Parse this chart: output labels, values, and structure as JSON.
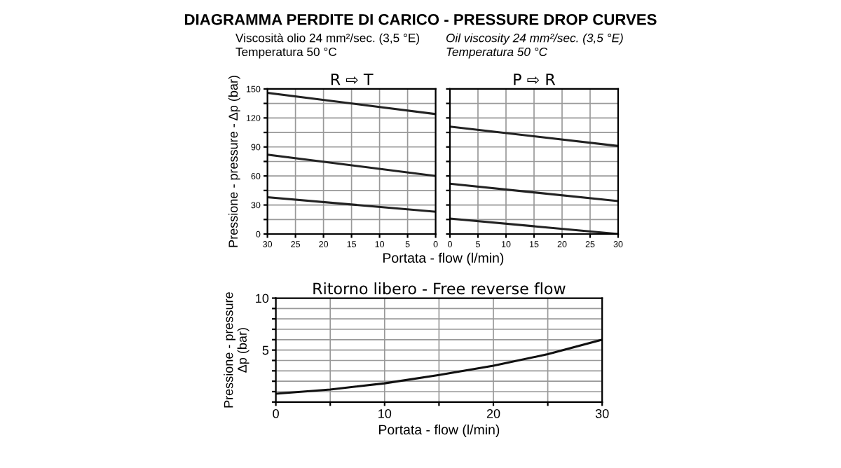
{
  "chart_data": [
    {
      "type": "line",
      "title": "R ⇨ T",
      "subtitle": "Viscosità olio 24 mm²/sec. (3,5 °E)\nTemperatura 50 °C",
      "annotations": [
        "DIAGRAMMA PERDITE DI CARICO - PRESSURE DROP CURVES"
      ],
      "xlabel": "Portata - flow (l/min)",
      "ylabel": "Pressione - pressure - Δp (bar)",
      "x": [
        30,
        0
      ],
      "series": [
        {
          "color": "#222222",
          "values": [
            146,
            124
          ]
        },
        {
          "color": "#222222",
          "values": [
            82,
            60
          ]
        },
        {
          "color": "#222222",
          "values": [
            38,
            23
          ]
        }
      ],
      "xlim": [
        30,
        0
      ],
      "xticks": [
        30,
        25,
        20,
        15,
        10,
        5,
        0
      ],
      "ylim": [
        0,
        150
      ],
      "yticks": [
        0,
        {
          "value": 15,
          "label": null
        },
        30,
        {
          "value": 45,
          "label": null
        },
        60,
        {
          "value": 75,
          "label": null
        },
        90,
        {
          "value": 105,
          "label": null
        },
        120,
        {
          "value": 135,
          "label": null
        },
        150
      ],
      "grid": true
    },
    {
      "type": "line",
      "title": "P ⇨ R",
      "subtitle": "Oil viscosity 24 mm²/sec. (3,5 °E)\nTemperatura 50 °C",
      "x": [
        0,
        30
      ],
      "series": [
        {
          "color": "#222222",
          "values": [
            111,
            91
          ]
        },
        {
          "color": "#222222",
          "values": [
            52,
            34
          ]
        },
        {
          "color": "#222222",
          "values": [
            16,
            0
          ]
        }
      ],
      "xlim": [
        0,
        30
      ],
      "xticks": [
        0,
        5,
        10,
        15,
        20,
        25,
        30
      ],
      "ylim": [
        0,
        150
      ],
      "yticks": [
        0,
        15,
        30,
        45,
        60,
        75,
        90,
        105,
        120,
        135,
        150
      ],
      "tick_labels": "x",
      "grid": true
    },
    {
      "type": "line",
      "title": "Ritorno libero - Free reverse flow",
      "xlabel": "Portata - flow (l/min)",
      "ylabel": "Pressione - pressure\nΔp (bar)",
      "x": [
        0,
        5,
        10,
        15,
        20,
        25,
        30
      ],
      "series": [
        {
          "color": "#111111",
          "values": [
            0.8,
            1.2,
            1.8,
            2.6,
            3.5,
            4.6,
            6.0
          ]
        }
      ],
      "xlim": [
        0,
        30
      ],
      "xticks": [
        0,
        {
          "value": 5,
          "label": null
        },
        10,
        {
          "value": 15,
          "label": null
        },
        20,
        {
          "value": 25,
          "label": null
        },
        30
      ],
      "ylim": [
        0,
        10
      ],
      "yticks": [
        {
          "value": 0,
          "label": null
        },
        {
          "value": 1,
          "label": null
        },
        {
          "value": 2,
          "label": null
        },
        {
          "value": 3,
          "label": null
        },
        {
          "value": 4,
          "label": null
        },
        5,
        {
          "value": 6,
          "label": null
        },
        {
          "value": 7,
          "label": null
        },
        {
          "value": 8,
          "label": null
        },
        {
          "value": 9,
          "label": null
        },
        10
      ],
      "grid": true
    }
  ]
}
